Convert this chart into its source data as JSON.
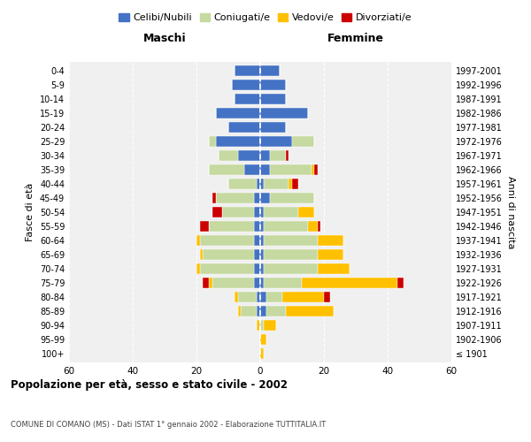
{
  "age_groups": [
    "100+",
    "95-99",
    "90-94",
    "85-89",
    "80-84",
    "75-79",
    "70-74",
    "65-69",
    "60-64",
    "55-59",
    "50-54",
    "45-49",
    "40-44",
    "35-39",
    "30-34",
    "25-29",
    "20-24",
    "15-19",
    "10-14",
    "5-9",
    "0-4"
  ],
  "birth_years": [
    "≤ 1901",
    "1902-1906",
    "1907-1911",
    "1912-1916",
    "1917-1921",
    "1922-1926",
    "1927-1931",
    "1932-1936",
    "1937-1941",
    "1942-1946",
    "1947-1951",
    "1952-1956",
    "1957-1961",
    "1962-1966",
    "1967-1971",
    "1972-1976",
    "1977-1981",
    "1982-1986",
    "1987-1991",
    "1992-1996",
    "1997-2001"
  ],
  "colors": {
    "celibe": "#4472C4",
    "coniugato": "#C5D9A0",
    "vedovo": "#FFC000",
    "divorziato": "#CC0000"
  },
  "males": {
    "celibe": [
      0,
      0,
      0,
      1,
      1,
      2,
      2,
      2,
      2,
      2,
      2,
      2,
      1,
      5,
      7,
      14,
      10,
      14,
      8,
      9,
      8
    ],
    "coniugato": [
      0,
      0,
      0,
      5,
      6,
      13,
      17,
      16,
      17,
      14,
      10,
      12,
      9,
      11,
      6,
      2,
      0,
      0,
      0,
      0,
      0
    ],
    "vedovo": [
      0,
      0,
      1,
      1,
      1,
      1,
      1,
      1,
      1,
      0,
      0,
      0,
      0,
      0,
      0,
      0,
      0,
      0,
      0,
      0,
      0
    ],
    "divorziato": [
      0,
      0,
      0,
      0,
      0,
      2,
      0,
      0,
      0,
      3,
      3,
      1,
      0,
      0,
      0,
      0,
      0,
      0,
      0,
      0,
      0
    ]
  },
  "females": {
    "celibe": [
      0,
      0,
      0,
      2,
      2,
      1,
      1,
      1,
      1,
      1,
      1,
      3,
      1,
      3,
      3,
      10,
      8,
      15,
      8,
      8,
      6
    ],
    "coniugato": [
      0,
      0,
      1,
      6,
      5,
      12,
      17,
      17,
      17,
      14,
      11,
      14,
      8,
      13,
      5,
      7,
      0,
      0,
      0,
      0,
      0
    ],
    "vedovo": [
      1,
      2,
      4,
      15,
      13,
      30,
      10,
      8,
      8,
      3,
      5,
      0,
      1,
      1,
      0,
      0,
      0,
      0,
      0,
      0,
      0
    ],
    "divorziato": [
      0,
      0,
      0,
      0,
      2,
      2,
      0,
      0,
      0,
      1,
      0,
      0,
      2,
      1,
      1,
      0,
      0,
      0,
      0,
      0,
      0
    ]
  },
  "xlim": [
    -60,
    60
  ],
  "xticks": [
    -60,
    -40,
    -20,
    0,
    20,
    40,
    60
  ],
  "xticklabels": [
    "60",
    "40",
    "20",
    "0",
    "20",
    "40",
    "60"
  ],
  "title": "Popolazione per età, sesso e stato civile - 2002",
  "subtitle": "COMUNE DI COMANO (MS) - Dati ISTAT 1° gennaio 2002 - Elaborazione TUTTITALIA.IT",
  "ylabel_left": "Fasce di età",
  "ylabel_right": "Anni di nascita",
  "header_left": "Maschi",
  "header_right": "Femmine",
  "legend_labels": [
    "Celibi/Nubili",
    "Coniugati/e",
    "Vedovi/e",
    "Divorziati/e"
  ],
  "background_color": "#f0f0f0"
}
